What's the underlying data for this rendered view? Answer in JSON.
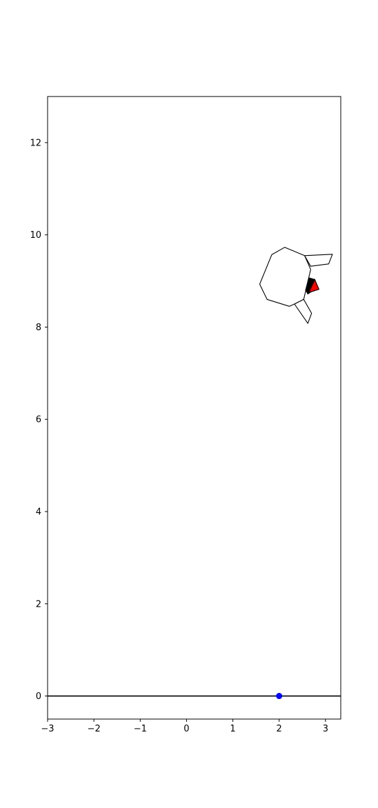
{
  "chart_data": {
    "type": "scatter",
    "title": "",
    "xlabel": "",
    "ylabel": "",
    "xlim": [
      -3,
      3.33
    ],
    "ylim": [
      -0.5,
      13
    ],
    "xticks": [
      "−3",
      "−2",
      "−1",
      "0",
      "1",
      "2",
      "3"
    ],
    "xtick_values": [
      -3,
      -2,
      -1,
      0,
      1,
      2,
      3
    ],
    "yticks": [
      "0",
      "2",
      "4",
      "6",
      "8",
      "10",
      "12"
    ],
    "ytick_values": [
      0,
      2,
      4,
      6,
      8,
      10,
      12
    ],
    "grid": false,
    "ground_line": {
      "y": 0,
      "color": "#000000"
    },
    "marker": {
      "x": 2,
      "y": 0,
      "color": "#0000ff"
    },
    "lander": {
      "body": {
        "fill": "#ffffff",
        "edge": "#000000",
        "points": [
          [
            2.12,
            9.73
          ],
          [
            2.55,
            9.55
          ],
          [
            2.68,
            9.25
          ],
          [
            2.53,
            8.6
          ],
          [
            2.33,
            8.5
          ],
          [
            2.22,
            8.45
          ],
          [
            1.74,
            8.6
          ],
          [
            1.58,
            8.93
          ],
          [
            1.84,
            9.57
          ]
        ]
      },
      "legs": [
        {
          "fill": "#ffffff",
          "edge": "#000000",
          "points": [
            [
              2.55,
              9.55
            ],
            [
              3.15,
              9.58
            ],
            [
              3.07,
              9.37
            ],
            [
              2.68,
              9.32
            ]
          ]
        },
        {
          "fill": "#ffffff",
          "edge": "#000000",
          "points": [
            [
              2.33,
              8.5
            ],
            [
              2.53,
              8.6
            ],
            [
              2.7,
              8.3
            ],
            [
              2.62,
              8.08
            ]
          ]
        }
      ],
      "thruster": {
        "fill": "#000000",
        "edge": "#000000",
        "points": [
          [
            2.57,
            8.8
          ],
          [
            2.62,
            8.72
          ],
          [
            2.82,
            8.85
          ],
          [
            2.77,
            9.03
          ],
          [
            2.64,
            9.07
          ]
        ]
      },
      "flame": {
        "fill": "#ff0000",
        "edge": "#000000",
        "points": [
          [
            2.64,
            8.75
          ],
          [
            2.86,
            8.82
          ],
          [
            2.77,
            9.03
          ]
        ]
      }
    }
  }
}
